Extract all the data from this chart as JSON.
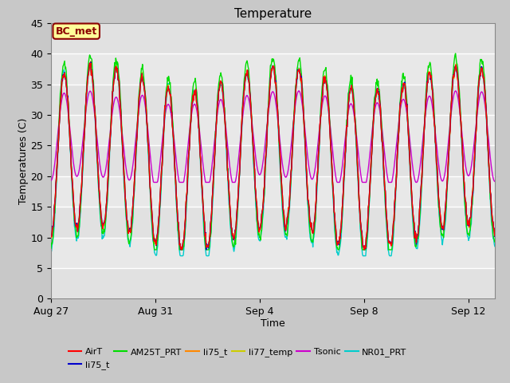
{
  "title": "Temperature",
  "xlabel": "Time",
  "ylabel": "Temperatures (C)",
  "ylim": [
    0,
    45
  ],
  "yticks": [
    0,
    5,
    10,
    15,
    20,
    25,
    30,
    35,
    40,
    45
  ],
  "annotation_text": "BC_met",
  "annotation_box_color": "#FFFF99",
  "annotation_border_color": "#8B0000",
  "annotation_text_color": "#8B0000",
  "fig_bg_color": "#C8C8C8",
  "plot_bg_color": "#E8E8E8",
  "grid_band_color": "#D0D0D0",
  "legend_labels": [
    "AirT",
    "li75_t",
    "AM25T_PRT",
    "li75_t",
    "li77_temp",
    "Tsonic",
    "NR01_PRT"
  ],
  "legend_colors": [
    "#FF0000",
    "#0000CC",
    "#00DD00",
    "#FF8800",
    "#CCCC00",
    "#CC00CC",
    "#00CCCC"
  ],
  "x_tick_labels": [
    "Aug 27",
    "Aug 31",
    "Sep 4",
    "Sep 8",
    "Sep 12"
  ],
  "x_tick_positions": [
    0,
    4,
    8,
    12,
    16
  ],
  "num_days": 17,
  "seed": 42
}
